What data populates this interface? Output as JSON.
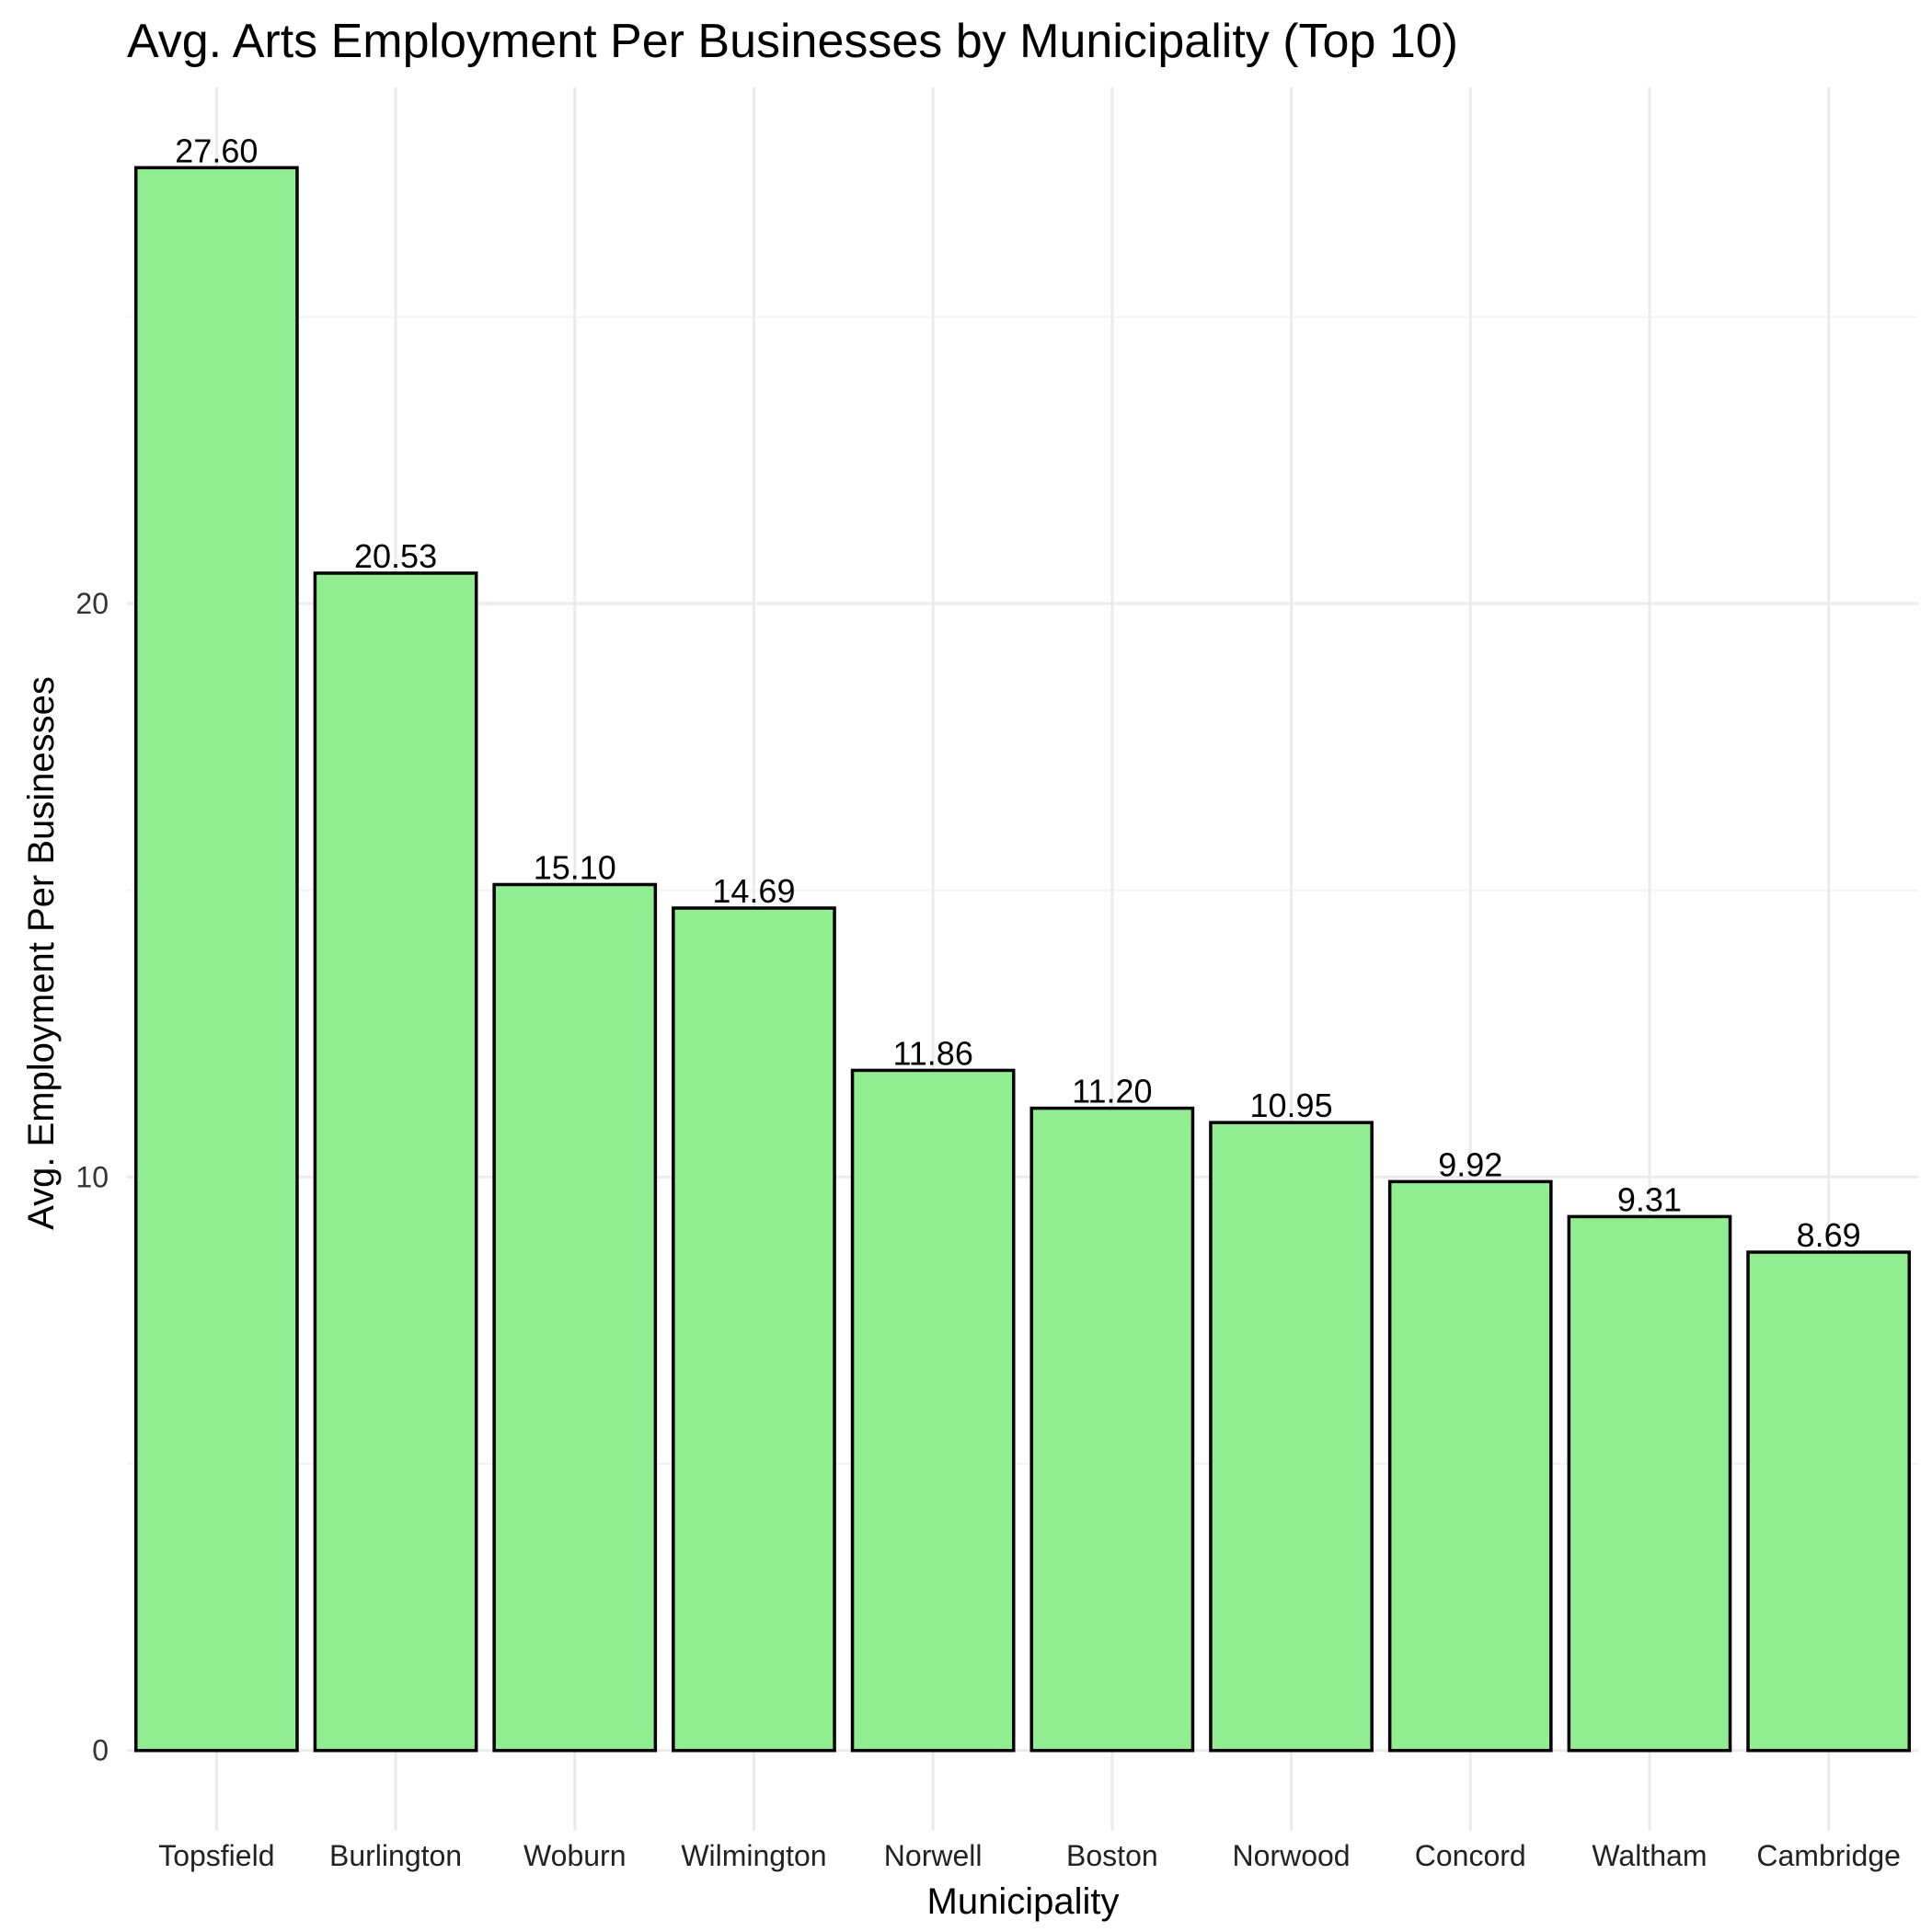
{
  "chart_data": {
    "type": "bar",
    "title": "Avg. Arts Employment Per Businesses by Municipality (Top 10)",
    "xlabel": "Municipality",
    "ylabel": "Avg. Employment Per Businesses",
    "categories": [
      "Topsfield",
      "Burlington",
      "Woburn",
      "Wilmington",
      "Norwell",
      "Boston",
      "Norwood",
      "Concord",
      "Waltham",
      "Cambridge"
    ],
    "values": [
      27.6,
      20.53,
      15.1,
      14.69,
      11.86,
      11.2,
      10.95,
      9.92,
      9.31,
      8.69
    ],
    "data_labels": [
      "27.60",
      "20.53",
      "15.10",
      "14.69",
      "11.86",
      "11.20",
      "10.95",
      "9.92",
      "9.31",
      "8.69"
    ],
    "yticks": [
      0,
      10,
      20
    ],
    "ytick_labels": [
      "0",
      "10",
      "20"
    ],
    "ylim": [
      -1.4,
      29.0
    ],
    "grid": true,
    "legend": "none",
    "bar_fill": "#90ee90",
    "bar_outline": "#000000"
  }
}
